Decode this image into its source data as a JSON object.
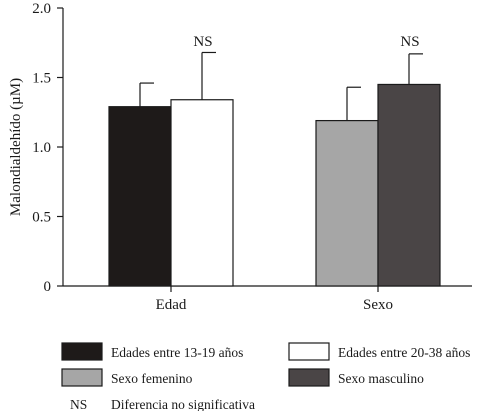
{
  "chart_data": {
    "type": "bar",
    "title": "",
    "xlabel": "",
    "ylabel": "Malondialdehído (µM)",
    "ylim": [
      0,
      2.0
    ],
    "yticks": [
      "0",
      "0.5",
      "1.0",
      "1.5",
      "2.0"
    ],
    "categories": [
      "Edad",
      "Sexo"
    ],
    "groups": [
      {
        "category": "Edad",
        "annotation": "NS",
        "bars": [
          {
            "name": "Edades entre 13-19 años",
            "value": 1.29,
            "error": 0.17,
            "color": "#1e1a19"
          },
          {
            "name": "Edades entre 20-38 años",
            "value": 1.34,
            "error": 0.34,
            "color": "#ffffff"
          }
        ]
      },
      {
        "category": "Sexo",
        "annotation": "NS",
        "bars": [
          {
            "name": "Sexo femenino",
            "value": 1.19,
            "error": 0.24,
            "color": "#a6a6a6"
          },
          {
            "name": "Sexo masculino",
            "value": 1.45,
            "error": 0.22,
            "color": "#4a4546"
          }
        ]
      }
    ],
    "legend": {
      "placement": "bottom",
      "items": [
        {
          "label": "Edades entre 13-19 años",
          "color": "#1e1a19"
        },
        {
          "label": "Edades entre 20-38 años",
          "color": "#ffffff"
        },
        {
          "label": "Sexo femenino",
          "color": "#a6a6a6"
        },
        {
          "label": "Sexo masculino",
          "color": "#4a4546"
        }
      ],
      "note": {
        "symbol": "NS",
        "text": "Diferencia no significativa"
      }
    }
  }
}
